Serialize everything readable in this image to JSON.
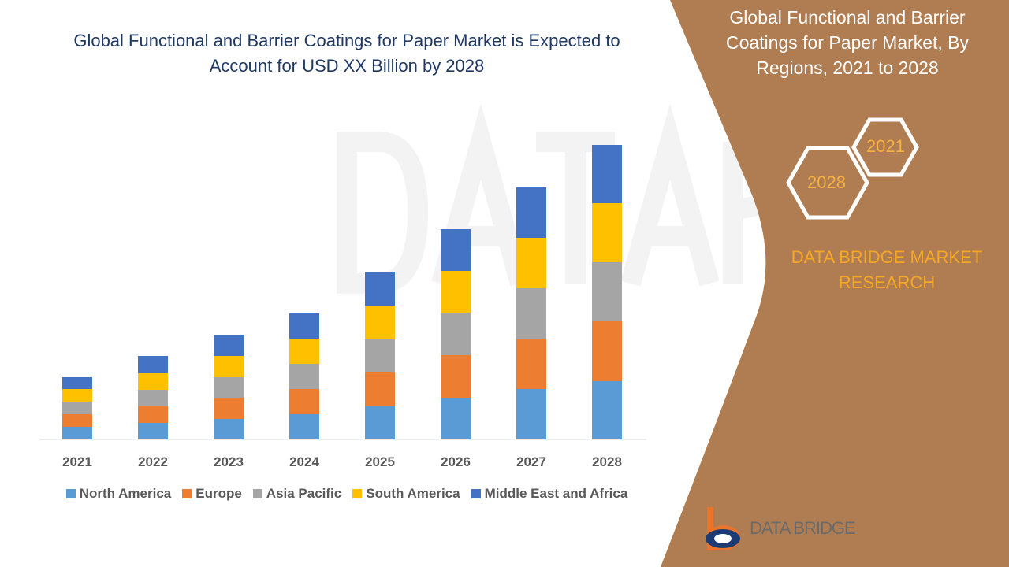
{
  "header": {
    "title": "Global Functional and Barrier Coatings for Paper Market is Expected to Account for USD XX Billion by 2028"
  },
  "side_panel": {
    "title": "Global Functional and Barrier Coatings for Paper Market, By Regions, 2021 to 2028",
    "hex_start": "2021",
    "hex_end": "2028",
    "brand": "DATA BRIDGE MARKET RESEARCH",
    "logo_text": "DATA BRIDGE",
    "watermark": "DATA BRIDGE",
    "panel_color": "#B07D52"
  },
  "chart_data": {
    "type": "bar",
    "stacked": true,
    "title": "",
    "xlabel": "",
    "ylabel": "",
    "categories": [
      "2021",
      "2022",
      "2023",
      "2024",
      "2025",
      "2026",
      "2027",
      "2028"
    ],
    "series": [
      {
        "name": "North America",
        "color": "#5B9BD5",
        "values": [
          16,
          21,
          26,
          32,
          42,
          53,
          64,
          74
        ]
      },
      {
        "name": "Europe",
        "color": "#ED7D31",
        "values": [
          16,
          21,
          27,
          32,
          43,
          54,
          64,
          76
        ]
      },
      {
        "name": "Asia Pacific",
        "color": "#A5A5A5",
        "values": [
          16,
          21,
          26,
          32,
          42,
          54,
          64,
          75
        ]
      },
      {
        "name": "South America",
        "color": "#FFC000",
        "values": [
          16,
          21,
          27,
          32,
          43,
          53,
          64,
          75
        ]
      },
      {
        "name": "Middle East and Africa",
        "color": "#4472C4",
        "values": [
          15,
          22,
          27,
          32,
          43,
          53,
          64,
          74
        ]
      }
    ],
    "ylim": [
      0,
      400
    ],
    "grid": false,
    "legend": "bottom",
    "note": "Values are relative (no axis shown)"
  }
}
